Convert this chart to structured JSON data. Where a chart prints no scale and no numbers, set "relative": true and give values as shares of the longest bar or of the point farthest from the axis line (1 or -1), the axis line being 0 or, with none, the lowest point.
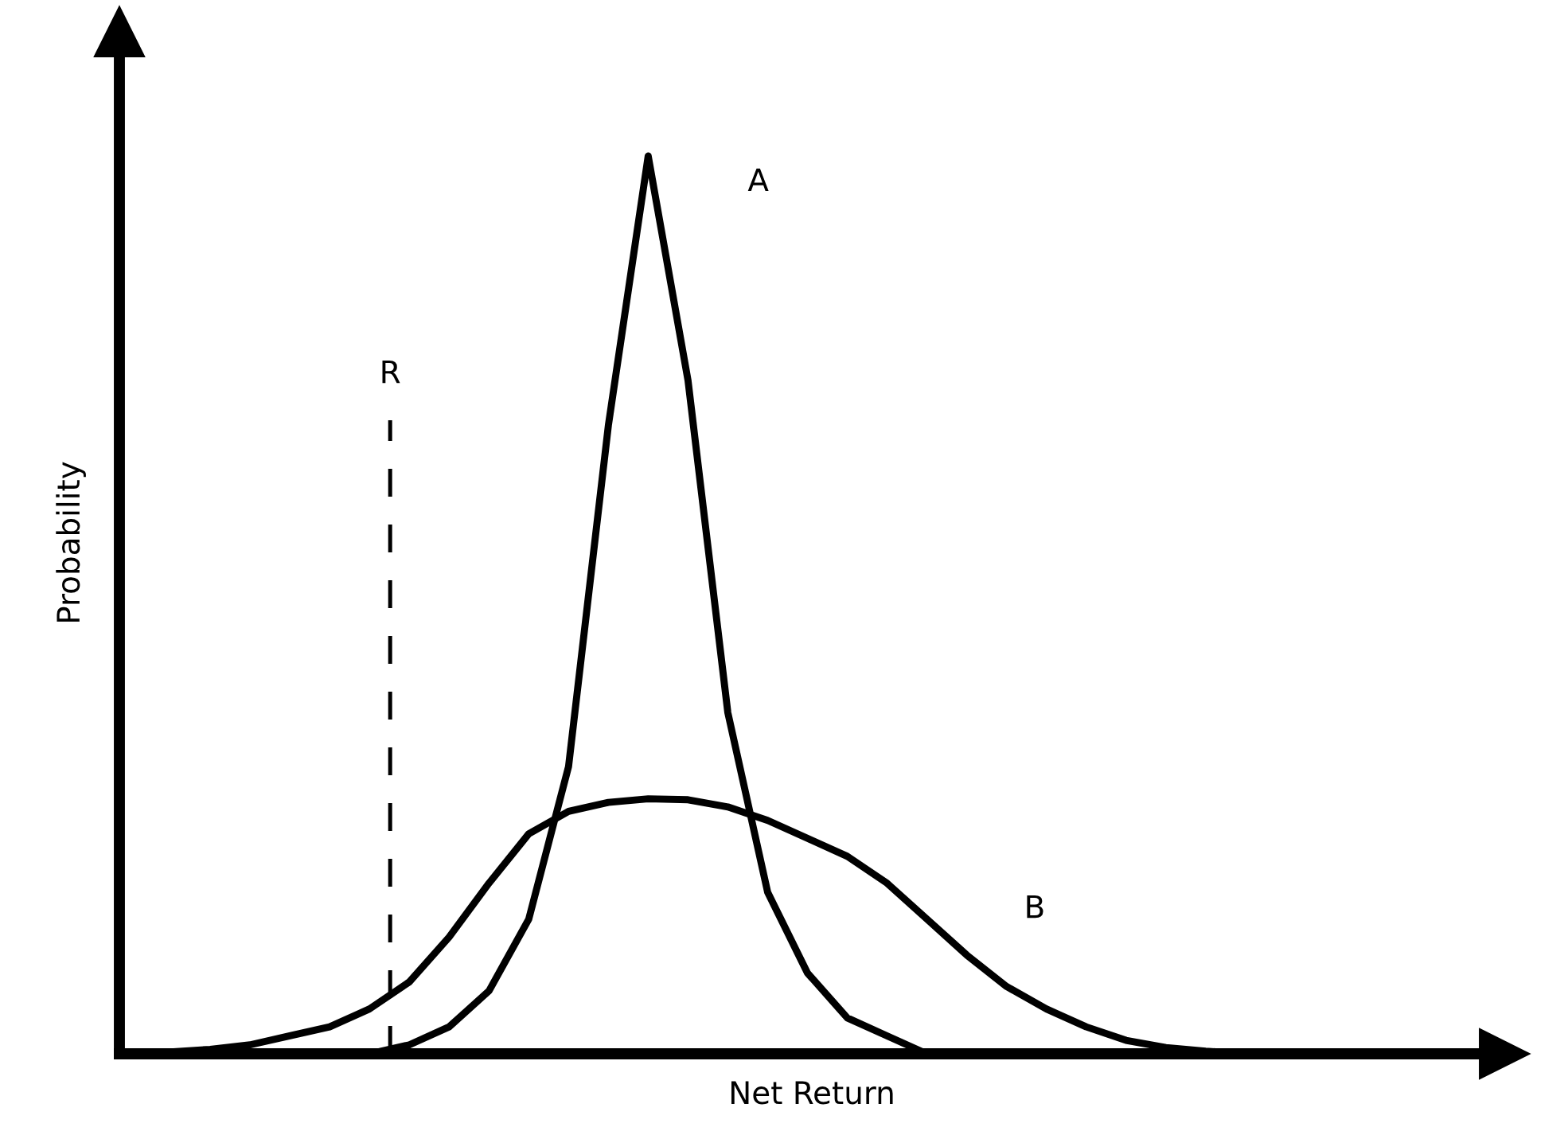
{
  "chart_data": {
    "type": "line",
    "relative": true,
    "xlabel": "Net Return",
    "ylabel": "Probability",
    "categories": [
      null,
      null,
      null,
      null,
      null,
      null,
      null,
      null,
      null,
      null,
      null,
      null,
      null,
      null,
      null,
      null,
      null,
      null,
      null,
      null,
      null,
      null,
      null,
      null,
      null,
      null,
      null,
      null,
      null,
      null,
      null,
      null,
      null,
      null,
      null
    ],
    "series": [
      {
        "name": "A",
        "color": "#000000",
        "values": [
          0,
          0,
          0,
          0,
          0,
          0,
          0,
          0.01,
          0.03,
          0.07,
          0.15,
          0.32,
          0.7,
          1.0,
          0.75,
          0.38,
          0.18,
          0.09,
          0.04,
          0.02,
          0,
          0,
          0,
          0,
          0,
          0,
          0,
          0,
          0,
          0,
          0,
          0,
          0,
          0,
          0
        ]
      },
      {
        "name": "B",
        "color": "#000000",
        "values": [
          0,
          0.002,
          0.005,
          0.01,
          0.02,
          0.03,
          0.05,
          0.08,
          0.13,
          0.19,
          0.245,
          0.27,
          0.28,
          0.284,
          0.283,
          0.275,
          0.26,
          0.24,
          0.22,
          0.19,
          0.15,
          0.11,
          0.075,
          0.05,
          0.03,
          0.015,
          0.007,
          0.003,
          0,
          0,
          0,
          0,
          0,
          0,
          0
        ]
      }
    ],
    "annotations": [
      "R"
    ],
    "marker": "none",
    "line_style": "solid"
  }
}
